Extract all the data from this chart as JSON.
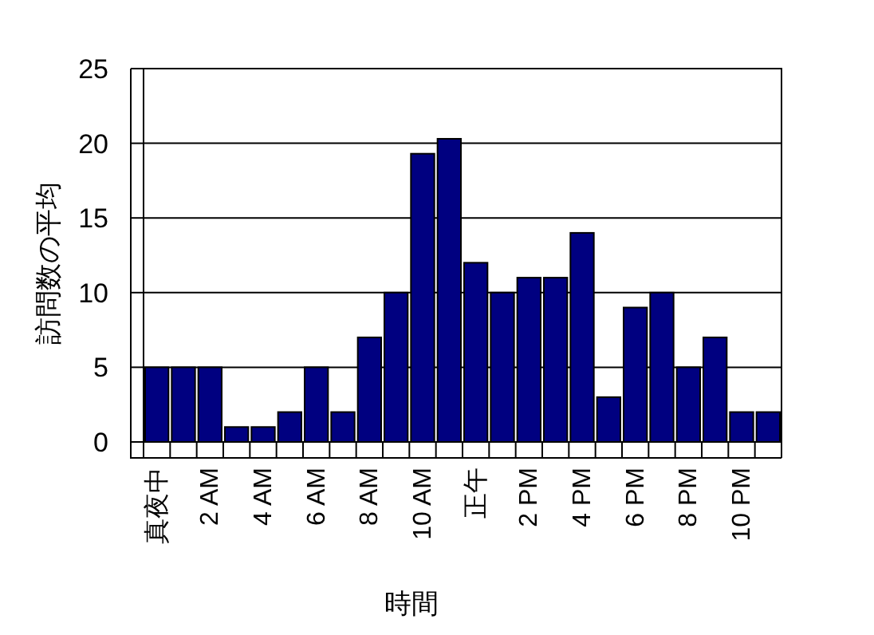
{
  "chart_data": {
    "type": "bar",
    "xlabel": "時間",
    "ylabel": "訪問数の平均",
    "categories": [
      "真夜中",
      null,
      "2 AM",
      null,
      "4 AM",
      null,
      "6 AM",
      null,
      "8 AM",
      null,
      "10 AM",
      null,
      "正午",
      null,
      "2 PM",
      null,
      "4 PM",
      null,
      "6 PM",
      null,
      "8 PM",
      null,
      "10 PM",
      null
    ],
    "values": [
      5,
      5,
      5,
      1,
      1,
      2,
      5,
      2,
      7,
      10,
      19.3,
      20.3,
      12,
      10,
      11,
      11,
      14,
      3,
      9,
      10,
      5,
      7,
      2,
      2
    ],
    "color": "#000080",
    "ylim": [
      0,
      25
    ],
    "yticks": [
      0,
      5,
      10,
      15,
      20,
      25
    ],
    "grid": "y"
  }
}
